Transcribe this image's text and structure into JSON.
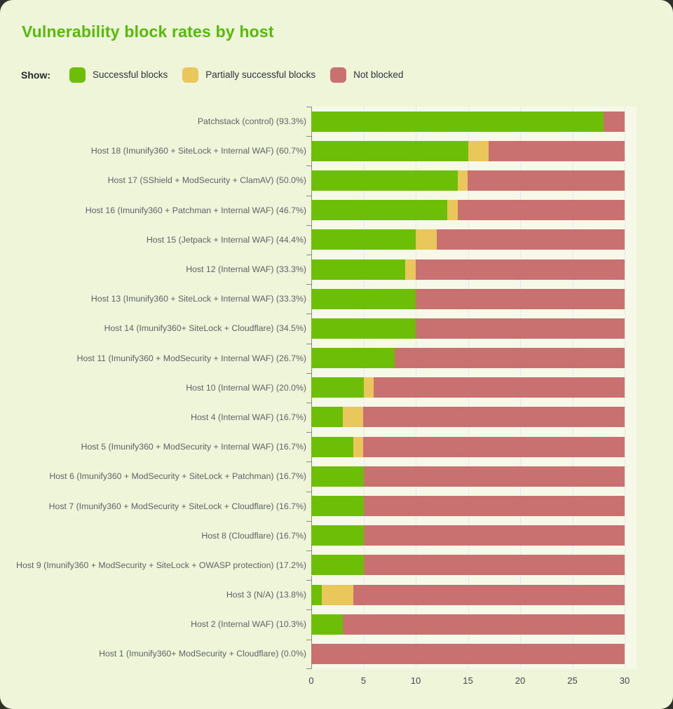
{
  "title": "Vulnerability block rates by host",
  "legend": {
    "show_label": "Show:",
    "items": [
      {
        "name": "successful-blocks",
        "label": "Successful blocks",
        "color": "#6cbe06"
      },
      {
        "name": "partially-successful-blocks",
        "label": "Partially successful blocks",
        "color": "#eac75a"
      },
      {
        "name": "not-blocked",
        "label": "Not blocked",
        "color": "#c97170"
      }
    ]
  },
  "colors": {
    "backdrop": "#2f312a",
    "card_bg": "#eff5d9",
    "plot_bg": "#f6f9e7",
    "title": "#55bb0a",
    "grid": "#e3e8f2",
    "axis": "#8a8d86",
    "label_text": "#5f6366",
    "tick_text": "#43464a"
  },
  "chart_data": {
    "type": "bar",
    "orientation": "horizontal",
    "stacked": true,
    "title": "Vulnerability block rates by host",
    "series_names": [
      "Successful blocks",
      "Partially successful blocks",
      "Not blocked"
    ],
    "xlabel": "",
    "ylabel": "",
    "xlim": [
      0,
      30
    ],
    "x_ticks": [
      0,
      5,
      10,
      15,
      20,
      25,
      30
    ],
    "grid": true,
    "legend_position": "top",
    "rows": [
      {
        "label": "Patchstack (control) (93.3%)",
        "values": [
          28,
          0,
          2
        ]
      },
      {
        "label": "Host 18 (Imunify360 + SiteLock + Internal WAF) (60.7%)",
        "values": [
          15,
          2,
          13
        ]
      },
      {
        "label": "Host 17 (SShield + ModSecurity + ClamAV) (50.0%)",
        "values": [
          14,
          1,
          15
        ]
      },
      {
        "label": "Host 16 (Imunify360 + Patchman + Internal WAF) (46.7%)",
        "values": [
          13,
          1,
          16
        ]
      },
      {
        "label": "Host 15 (Jetpack + Internal WAF) (44.4%)",
        "values": [
          10,
          2,
          18
        ]
      },
      {
        "label": "Host 12 (Internal WAF) (33.3%)",
        "values": [
          9,
          1,
          20
        ]
      },
      {
        "label": "Host 13 (Imunify360 + SiteLock + Internal WAF) (33.3%)",
        "values": [
          10,
          0,
          20
        ]
      },
      {
        "label": "Host 14 (Imunify360+ SiteLock + Cloudflare) (34.5%)",
        "values": [
          10,
          0,
          20
        ]
      },
      {
        "label": "Host 11 (Imunify360 + ModSecurity + Internal WAF) (26.7%)",
        "values": [
          8,
          0,
          22
        ]
      },
      {
        "label": "Host 10 (Internal WAF) (20.0%)",
        "values": [
          5,
          1,
          24
        ]
      },
      {
        "label": "Host 4 (Internal WAF) (16.7%)",
        "values": [
          3,
          2,
          25
        ]
      },
      {
        "label": "Host 5 (Imunify360 + ModSecurity + Internal WAF) (16.7%)",
        "values": [
          4,
          1,
          25
        ]
      },
      {
        "label": "Host 6 (Imunify360 + ModSecurity + SiteLock + Patchman) (16.7%)",
        "values": [
          5,
          0,
          25
        ]
      },
      {
        "label": "Host 7 (Imunify360 + ModSecurity + SiteLock + Cloudflare) (16.7%)",
        "values": [
          5,
          0,
          25
        ]
      },
      {
        "label": "Host 8 (Cloudflare) (16.7%)",
        "values": [
          5,
          0,
          25
        ]
      },
      {
        "label": "Host 9 (Imunify360 + ModSecurity + SiteLock + OWASP protection) (17.2%)",
        "values": [
          5,
          0,
          25
        ]
      },
      {
        "label": "Host 3 (N/A) (13.8%)",
        "values": [
          1,
          3,
          26
        ]
      },
      {
        "label": "Host 2 (Internal WAF) (10.3%)",
        "values": [
          3,
          0,
          27
        ]
      },
      {
        "label": "Host 1 (Imunify360+ ModSecurity + Cloudflare) (0.0%)",
        "values": [
          0,
          0,
          30
        ]
      }
    ]
  }
}
